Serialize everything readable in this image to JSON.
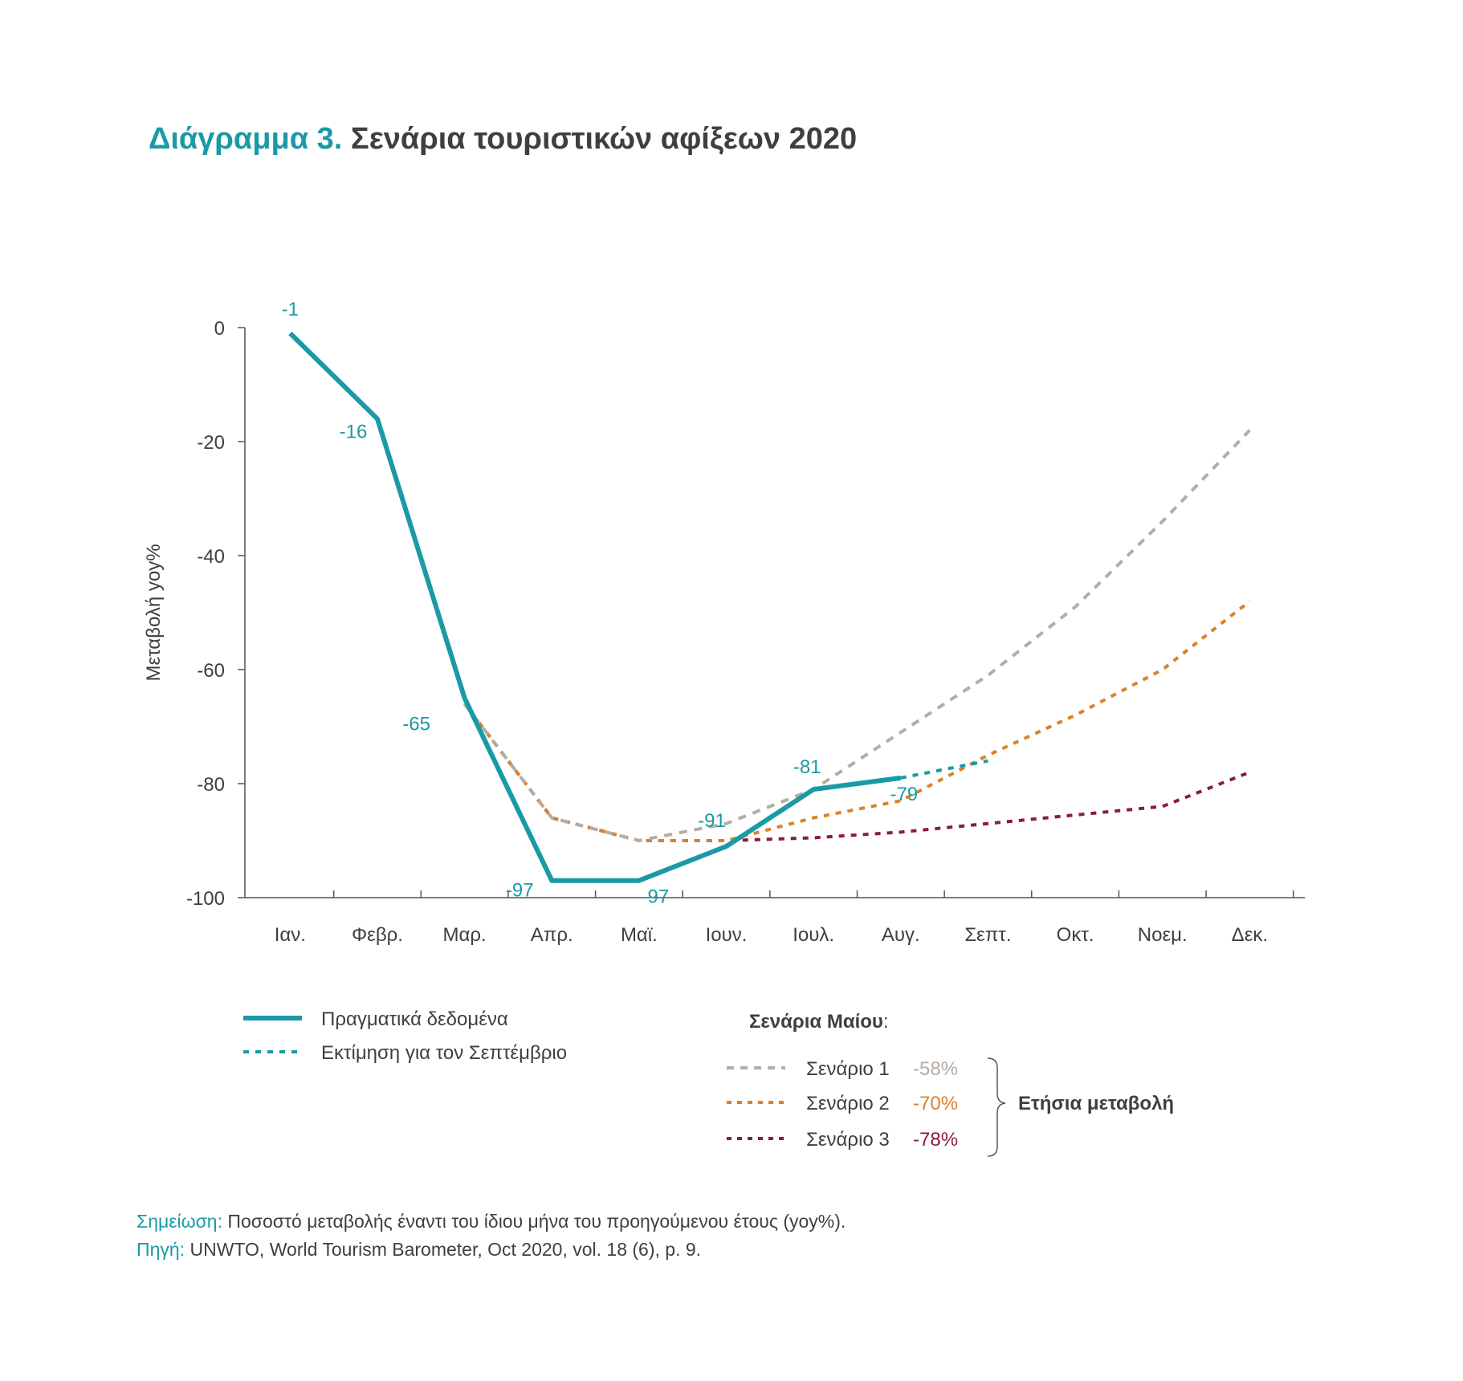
{
  "title": {
    "prefix": "Διάγραμμα 3.",
    "main": "Σενάρια τουριστικών αφίξεων 2020"
  },
  "colors": {
    "actual": "#1a9aa6",
    "scenario1": "#b5aca5",
    "scenario2": "#d9822b",
    "scenario3": "#8a1c3d",
    "axis": "#555555",
    "text": "#3f3f3f"
  },
  "chart_data": {
    "type": "line",
    "ylabel": "Μεταβολή yoy%",
    "xlabel": "",
    "ylim": [
      -100,
      0
    ],
    "yticks": [
      "0",
      "-20",
      "-40",
      "-60",
      "-80",
      "-100"
    ],
    "categories": [
      "Ιαν.",
      "Φεβρ.",
      "Μαρ.",
      "Απρ.",
      "Μαϊ.",
      "Ιουν.",
      "Ιουλ.",
      "Αυγ.",
      "Σεπτ.",
      "Οκτ.",
      "Νοεμ.",
      "Δεκ."
    ],
    "grid": false,
    "series": [
      {
        "name": "Πραγματικά δεδομένα",
        "style": "solid",
        "color": "actual",
        "x": [
          0,
          1,
          2,
          3,
          4,
          5,
          6,
          7
        ],
        "y": [
          -1,
          -16,
          -65,
          -97,
          -97,
          -91,
          -81,
          -79
        ]
      },
      {
        "name": "Εκτίμηση για τον Σεπτέμβριο",
        "style": "dotted",
        "color": "actual",
        "x": [
          7,
          8
        ],
        "y": [
          -79,
          -76
        ]
      },
      {
        "name": "Σενάριο 1",
        "style": "dashed",
        "color": "scenario1",
        "x": [
          2,
          3,
          4,
          5,
          6,
          7,
          8,
          9,
          10,
          11
        ],
        "y": [
          -66,
          -86,
          -90,
          -87,
          -81,
          -71,
          -61,
          -49,
          -34,
          -18
        ]
      },
      {
        "name": "Σενάριο 2",
        "style": "dashed",
        "color": "scenario2",
        "x": [
          2,
          3,
          4,
          5,
          6,
          7,
          8,
          9,
          10,
          11
        ],
        "y": [
          -66,
          -86,
          -90,
          -90,
          -86,
          -83,
          -75,
          -68,
          -60,
          -48
        ]
      },
      {
        "name": "Σενάριο 3",
        "style": "dashed",
        "color": "scenario3",
        "x": [
          2,
          3,
          4,
          5,
          6,
          7,
          8,
          9,
          10,
          11
        ],
        "y": [
          -66,
          -86,
          -90,
          -90,
          -89.5,
          -88.5,
          -87,
          -85.5,
          -84,
          -78
        ]
      }
    ],
    "data_labels": [
      "-1",
      "-16",
      "-65",
      "-97",
      "-97",
      "-91",
      "-81",
      "-79"
    ]
  },
  "legend": {
    "actual_label": "Πραγματικά δεδομένα",
    "estimate_label": "Εκτίμηση για τον Σεπτέμβριο",
    "scenarios_heading": "Σενάρια Μαίου",
    "scenarios_heading_suffix": ":",
    "scenario1_label": "Σενάριο 1",
    "scenario1_value": "-58%",
    "scenario2_label": "Σενάριο 2",
    "scenario2_value": "-70%",
    "scenario3_label": "Σενάριο 3",
    "scenario3_value": "-78%",
    "annual_change_label": "Ετήσια μεταβολή"
  },
  "notes": {
    "note_label": "Σημείωση:",
    "note_text": " Ποσοστό μεταβολής έναντι του ίδιου μήνα του προηγούμενου έτους (yoy%).",
    "source_label": "Πηγή:",
    "source_text": " UNWTO, World Tourism Barometer, Oct 2020, vol. 18 (6), p. 9."
  }
}
